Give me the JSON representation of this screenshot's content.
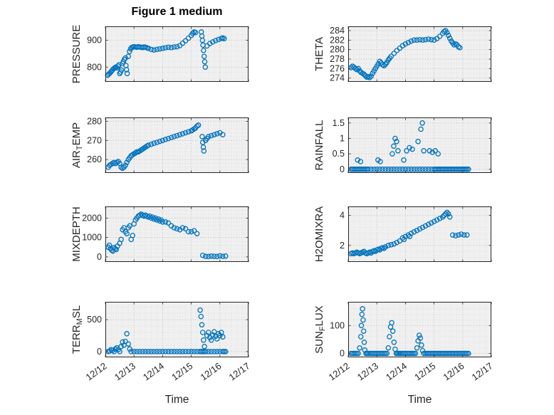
{
  "figure": {
    "title": "Figure 1 medium",
    "marker_color": "#0072BD",
    "axis_color": "#262626",
    "plot_bg": "#f0f0f0",
    "grid_major": "#b5b5b5",
    "grid_minor": "#d9d9d9"
  },
  "x_axis": {
    "label": "Time",
    "min": 0,
    "max": 5,
    "tick_labels": [
      "12/12",
      "12/13",
      "12/14",
      "12/15",
      "12/16",
      "12/17"
    ]
  },
  "chart_data": [
    {
      "name": "PRESSURE",
      "type": "scatter",
      "ylabel_parts": [
        {
          "text": "PRESSURE"
        }
      ],
      "yticks": [
        800,
        900
      ],
      "ylim": [
        745,
        952
      ],
      "x": [
        0.08,
        0.12,
        0.16,
        0.2,
        0.24,
        0.28,
        0.32,
        0.36,
        0.4,
        0.44,
        0.47,
        0.5,
        0.53,
        0.56,
        0.6,
        0.63,
        0.66,
        0.7,
        0.72,
        0.74,
        0.76,
        0.8,
        0.84,
        0.88,
        0.92,
        0.96,
        1.0,
        1.05,
        1.1,
        1.15,
        1.2,
        1.25,
        1.3,
        1.35,
        1.4,
        1.45,
        1.5,
        1.6,
        1.7,
        1.8,
        1.9,
        2.0,
        2.1,
        2.2,
        2.3,
        2.4,
        2.5,
        2.6,
        2.7,
        2.8,
        2.9,
        3.0,
        3.05,
        3.1,
        3.15,
        3.35,
        3.37,
        3.39,
        3.41,
        3.43,
        3.45,
        3.47,
        3.49,
        3.55,
        3.65,
        3.75,
        3.85,
        3.95,
        4.05,
        4.1,
        4.15
      ],
      "y": [
        770,
        774,
        778,
        783,
        788,
        793,
        797,
        800,
        797,
        803,
        808,
        776,
        782,
        789,
        814,
        820,
        828,
        834,
        806,
        790,
        776,
        840,
        858,
        868,
        873,
        875,
        876,
        875,
        874,
        876,
        875,
        874,
        873,
        875,
        874,
        872,
        870,
        866,
        864,
        866,
        868,
        870,
        872,
        874,
        873,
        875,
        876,
        880,
        889,
        898,
        908,
        918,
        926,
        931,
        929,
        931,
        916,
        900,
        882,
        862,
        840,
        820,
        800,
        879,
        888,
        894,
        899,
        903,
        907,
        909,
        906
      ]
    },
    {
      "name": "THETA",
      "type": "scatter",
      "ylabel_parts": [
        {
          "text": "THETA"
        }
      ],
      "yticks": [
        274,
        276,
        278,
        280,
        282,
        284
      ],
      "ylim": [
        273.2,
        284.9
      ],
      "x": [
        0.1,
        0.15,
        0.2,
        0.25,
        0.3,
        0.35,
        0.4,
        0.45,
        0.5,
        0.55,
        0.6,
        0.65,
        0.7,
        0.75,
        0.8,
        0.85,
        0.9,
        0.95,
        1.0,
        1.05,
        1.1,
        1.15,
        1.2,
        1.25,
        1.3,
        1.35,
        1.4,
        1.45,
        1.5,
        1.6,
        1.7,
        1.8,
        1.9,
        2.0,
        2.1,
        2.2,
        2.3,
        2.4,
        2.5,
        2.6,
        2.7,
        2.8,
        2.9,
        3.0,
        3.1,
        3.2,
        3.3,
        3.35,
        3.4,
        3.45,
        3.5,
        3.55,
        3.6,
        3.65,
        3.7,
        3.75,
        3.8,
        3.85,
        3.9
      ],
      "y": [
        276.2,
        276.5,
        276.3,
        276.0,
        275.8,
        276.0,
        275.5,
        275.2,
        275.0,
        274.8,
        274.5,
        274.2,
        274.3,
        274.1,
        274.4,
        275.0,
        275.5,
        276.0,
        276.5,
        277.0,
        277.5,
        277.2,
        276.8,
        276.6,
        276.9,
        277.3,
        277.8,
        278.2,
        278.6,
        279.2,
        279.8,
        280.3,
        280.8,
        281.2,
        281.5,
        281.8,
        282.0,
        282.0,
        282.1,
        282.0,
        282.1,
        282.2,
        282.1,
        282.0,
        282.3,
        282.8,
        283.4,
        283.8,
        284.0,
        283.6,
        283.0,
        282.4,
        281.8,
        281.4,
        281.0,
        281.2,
        281.0,
        280.6,
        280.4
      ]
    },
    {
      "name": "AIR_TEMP",
      "type": "scatter",
      "ylabel_parts": [
        {
          "text": "AIR"
        },
        {
          "text": "T",
          "sub": true
        },
        {
          "text": "EMP"
        }
      ],
      "yticks": [
        260,
        270,
        280
      ],
      "ylim": [
        253,
        282
      ],
      "x": [
        0.1,
        0.15,
        0.2,
        0.25,
        0.3,
        0.35,
        0.4,
        0.45,
        0.5,
        0.55,
        0.6,
        0.65,
        0.7,
        0.75,
        0.8,
        0.85,
        0.9,
        0.95,
        1.0,
        1.05,
        1.1,
        1.15,
        1.2,
        1.25,
        1.3,
        1.35,
        1.4,
        1.45,
        1.5,
        1.6,
        1.7,
        1.8,
        1.9,
        2.0,
        2.1,
        2.2,
        2.3,
        2.4,
        2.5,
        2.6,
        2.7,
        2.8,
        2.9,
        3.0,
        3.05,
        3.1,
        3.15,
        3.2,
        3.25,
        3.38,
        3.4,
        3.42,
        3.44,
        3.5,
        3.55,
        3.6,
        3.7,
        3.8,
        3.9,
        4.0,
        4.1
      ],
      "y": [
        256.0,
        257.0,
        257.5,
        258.0,
        258.5,
        258.0,
        258.5,
        259.0,
        258.0,
        256.0,
        255.5,
        256.0,
        257.0,
        258.5,
        260.0,
        261.0,
        262.0,
        262.5,
        263.0,
        263.5,
        264.0,
        264.0,
        264.5,
        265.0,
        265.5,
        266.0,
        266.5,
        267.0,
        267.5,
        268.0,
        268.5,
        269.0,
        269.5,
        270.0,
        270.5,
        271.0,
        271.5,
        272.0,
        272.5,
        273.0,
        273.5,
        274.0,
        274.5,
        275.0,
        275.5,
        276.0,
        276.5,
        277.5,
        278.0,
        272.0,
        269.0,
        266.5,
        264.5,
        270.0,
        271.0,
        272.0,
        272.5,
        273.0,
        273.5,
        274.0,
        273.0
      ]
    },
    {
      "name": "RAINFALL",
      "type": "scatter",
      "ylabel_parts": [
        {
          "text": "RAINFALL"
        }
      ],
      "yticks": [
        0,
        0.5,
        1,
        1.5
      ],
      "ylim": [
        -0.12,
        1.68
      ],
      "x": [
        0.1,
        0.15,
        0.2,
        0.25,
        0.3,
        0.35,
        0.4,
        0.45,
        0.5,
        0.55,
        0.6,
        0.65,
        0.7,
        0.8,
        0.9,
        1.0,
        1.1,
        1.2,
        1.3,
        1.4,
        1.5,
        1.6,
        1.7,
        1.8,
        1.9,
        2.0,
        2.1,
        2.2,
        2.3,
        2.4,
        2.5,
        2.6,
        2.7,
        2.8,
        2.9,
        3.0,
        3.05,
        3.1,
        3.15,
        3.2,
        3.25,
        3.3,
        3.35,
        3.4,
        3.45,
        3.5,
        3.55,
        3.6,
        3.65,
        3.7,
        3.75,
        3.8,
        3.85,
        3.9,
        3.95,
        4.0,
        4.05,
        4.1,
        4.15,
        4.2,
        0.33,
        0.43,
        1.04,
        1.12,
        1.54,
        1.59,
        1.64,
        1.69,
        1.74,
        1.94,
        2.04,
        2.14,
        2.24,
        2.44,
        2.54,
        2.59,
        2.64,
        2.84,
        2.94,
        3.04,
        3.14
      ],
      "y": [
        0,
        0,
        0,
        0,
        0,
        0,
        0,
        0,
        0,
        0,
        0,
        0,
        0,
        0,
        0,
        0,
        0,
        0,
        0,
        0,
        0,
        0,
        0,
        0,
        0,
        0,
        0,
        0,
        0,
        0,
        0,
        0,
        0,
        0,
        0,
        0,
        0,
        0,
        0,
        0,
        0,
        0,
        0,
        0,
        0,
        0,
        0,
        0,
        0,
        0,
        0,
        0,
        0,
        0,
        0,
        0,
        0,
        0,
        0,
        0,
        0.3,
        0.25,
        0.3,
        0.25,
        0.5,
        0.75,
        1.0,
        0.9,
        0.6,
        0.3,
        0.6,
        0.7,
        0.65,
        0.9,
        1.3,
        1.5,
        0.6,
        0.6,
        0.55,
        0.6,
        0.5
      ]
    },
    {
      "name": "MIXDEPTH",
      "type": "scatter",
      "ylabel_parts": [
        {
          "text": "MIXDEPTH"
        }
      ],
      "yticks": [
        0,
        1000,
        2000
      ],
      "ylim": [
        -260,
        2600
      ],
      "x": [
        0.1,
        0.14,
        0.18,
        0.22,
        0.26,
        0.3,
        0.34,
        0.38,
        0.42,
        0.5,
        0.55,
        0.6,
        0.65,
        0.7,
        0.75,
        0.8,
        0.85,
        0.9,
        0.95,
        1.0,
        1.05,
        1.1,
        1.15,
        1.2,
        1.25,
        1.3,
        1.35,
        1.4,
        1.45,
        1.5,
        1.55,
        1.6,
        1.65,
        1.7,
        1.75,
        1.8,
        1.85,
        1.9,
        1.95,
        2.0,
        2.1,
        2.2,
        2.3,
        2.4,
        2.5,
        2.6,
        2.7,
        2.8,
        2.9,
        3.0,
        3.1,
        3.2,
        3.4,
        3.5,
        3.6,
        3.7,
        3.8,
        3.9,
        4.0,
        4.1,
        4.2
      ],
      "y": [
        500,
        600,
        420,
        350,
        300,
        480,
        420,
        380,
        550,
        700,
        900,
        1400,
        1500,
        1300,
        1200,
        1500,
        1600,
        900,
        1100,
        1700,
        1900,
        2000,
        2100,
        2150,
        2200,
        2150,
        2100,
        2150,
        2100,
        2050,
        2100,
        2000,
        2050,
        1950,
        2000,
        1900,
        1950,
        1850,
        1900,
        1800,
        1800,
        1750,
        1600,
        1500,
        1450,
        1400,
        1500,
        1450,
        1300,
        1300,
        1350,
        1200,
        80,
        30,
        20,
        40,
        30,
        20,
        50,
        30,
        40
      ]
    },
    {
      "name": "H2OMIXRA",
      "type": "scatter",
      "ylabel_parts": [
        {
          "text": "H2OMIXRA"
        }
      ],
      "yticks": [
        2,
        4
      ],
      "ylim": [
        0.9,
        4.6
      ],
      "x": [
        0.1,
        0.15,
        0.2,
        0.25,
        0.3,
        0.35,
        0.4,
        0.45,
        0.5,
        0.55,
        0.6,
        0.65,
        0.7,
        0.75,
        0.8,
        0.85,
        0.9,
        0.95,
        1.0,
        1.05,
        1.1,
        1.15,
        1.2,
        1.25,
        1.3,
        1.4,
        1.5,
        1.6,
        1.7,
        1.8,
        1.9,
        1.95,
        2.0,
        2.1,
        2.15,
        2.2,
        2.3,
        2.4,
        2.5,
        2.6,
        2.7,
        2.8,
        2.9,
        3.0,
        3.1,
        3.2,
        3.3,
        3.35,
        3.4,
        3.45,
        3.5,
        3.55,
        3.65,
        3.75,
        3.85,
        3.95,
        4.05,
        4.15
      ],
      "y": [
        1.45,
        1.5,
        1.45,
        1.5,
        1.55,
        1.5,
        1.45,
        1.5,
        1.55,
        1.6,
        1.5,
        1.45,
        1.5,
        1.55,
        1.5,
        1.6,
        1.65,
        1.6,
        1.7,
        1.75,
        1.7,
        1.8,
        1.85,
        1.8,
        1.9,
        2.0,
        2.05,
        2.1,
        2.2,
        2.3,
        2.5,
        2.4,
        2.6,
        2.7,
        2.6,
        2.8,
        2.9,
        3.0,
        3.1,
        3.2,
        3.3,
        3.4,
        3.5,
        3.6,
        3.7,
        3.8,
        3.9,
        4.0,
        4.1,
        4.2,
        4.1,
        3.9,
        2.7,
        2.65,
        2.7,
        2.75,
        2.7,
        2.7
      ]
    },
    {
      "name": "TERR_MSL",
      "type": "scatter",
      "ylabel_parts": [
        {
          "text": "TERR"
        },
        {
          "text": "M",
          "sub": true
        },
        {
          "text": "SL"
        }
      ],
      "yticks": [
        0,
        500
      ],
      "ylim": [
        -90,
        780
      ],
      "x": [
        0.1,
        0.15,
        0.2,
        0.25,
        0.3,
        0.35,
        0.4,
        0.45,
        0.5,
        0.55,
        0.6,
        0.65,
        0.7,
        0.75,
        0.8,
        0.85,
        0.9,
        1.0,
        1.1,
        1.2,
        1.3,
        1.4,
        1.5,
        1.6,
        1.7,
        1.8,
        1.9,
        2.0,
        2.1,
        2.2,
        2.3,
        2.4,
        2.5,
        2.6,
        2.7,
        2.8,
        2.9,
        3.0,
        3.1,
        3.2,
        3.31,
        3.34,
        3.37,
        3.4,
        3.43,
        3.46,
        3.3,
        3.35,
        3.4,
        3.45,
        3.5,
        3.6,
        3.7,
        3.8,
        3.9,
        4.0,
        4.1,
        4.15,
        4.2,
        3.55,
        3.6,
        3.65,
        3.7,
        3.75,
        3.8,
        3.85,
        3.9,
        3.95,
        4.0,
        4.05,
        4.1
      ],
      "y": [
        0,
        10,
        30,
        20,
        0,
        40,
        60,
        30,
        0,
        80,
        150,
        100,
        160,
        280,
        120,
        40,
        0,
        0,
        0,
        0,
        0,
        0,
        0,
        0,
        0,
        0,
        0,
        0,
        0,
        0,
        0,
        0,
        0,
        0,
        0,
        0,
        0,
        0,
        0,
        0,
        650,
        550,
        420,
        300,
        180,
        80,
        0,
        0,
        0,
        0,
        0,
        0,
        0,
        0,
        0,
        0,
        0,
        0,
        0,
        250,
        300,
        220,
        180,
        260,
        310,
        240,
        200,
        280,
        250,
        300,
        230
      ]
    },
    {
      "name": "SUN_FLUX",
      "type": "scatter",
      "ylabel_parts": [
        {
          "text": "SUN"
        },
        {
          "text": "F",
          "sub": true
        },
        {
          "text": "LUX"
        }
      ],
      "yticks": [
        0,
        100
      ],
      "ylim": [
        -14,
        185
      ],
      "x": [
        0.1,
        0.15,
        0.2,
        0.25,
        0.3,
        0.35,
        0.62,
        0.66,
        0.7,
        0.75,
        0.8,
        0.85,
        0.9,
        0.95,
        1.0,
        1.05,
        1.1,
        1.15,
        1.2,
        1.25,
        1.3,
        1.35,
        1.68,
        1.72,
        1.76,
        1.8,
        1.85,
        1.9,
        1.95,
        2.0,
        2.05,
        2.1,
        2.15,
        2.2,
        2.25,
        2.3,
        2.35,
        2.64,
        2.7,
        2.75,
        2.8,
        2.85,
        2.9,
        2.95,
        3.0,
        3.05,
        3.1,
        3.15,
        3.2,
        3.25,
        3.3,
        3.35,
        3.4,
        3.45,
        3.5,
        3.55,
        3.6,
        3.65,
        3.7,
        3.75,
        3.8,
        3.85,
        3.9,
        3.95,
        4.0,
        4.05,
        4.1,
        4.15,
        4.2,
        0.4,
        0.44,
        0.46,
        0.48,
        0.5,
        0.52,
        0.54,
        0.56,
        0.58,
        1.4,
        1.44,
        1.48,
        1.52,
        1.56,
        1.6,
        1.64,
        2.4,
        2.44,
        2.48,
        2.52,
        2.56,
        2.6
      ],
      "y": [
        0,
        0,
        0,
        0,
        0,
        0,
        0,
        0,
        0,
        0,
        0,
        0,
        0,
        0,
        0,
        0,
        0,
        0,
        0,
        0,
        0,
        0,
        0,
        0,
        0,
        0,
        0,
        0,
        0,
        0,
        0,
        0,
        0,
        0,
        0,
        0,
        0,
        0,
        0,
        0,
        0,
        0,
        0,
        0,
        0,
        0,
        0,
        0,
        0,
        0,
        0,
        0,
        0,
        0,
        0,
        0,
        0,
        0,
        0,
        0,
        0,
        0,
        0,
        0,
        0,
        0,
        0,
        0,
        0,
        20,
        60,
        100,
        140,
        160,
        120,
        80,
        40,
        12,
        20,
        60,
        95,
        110,
        80,
        40,
        15,
        20,
        45,
        65,
        55,
        30,
        10
      ]
    }
  ]
}
